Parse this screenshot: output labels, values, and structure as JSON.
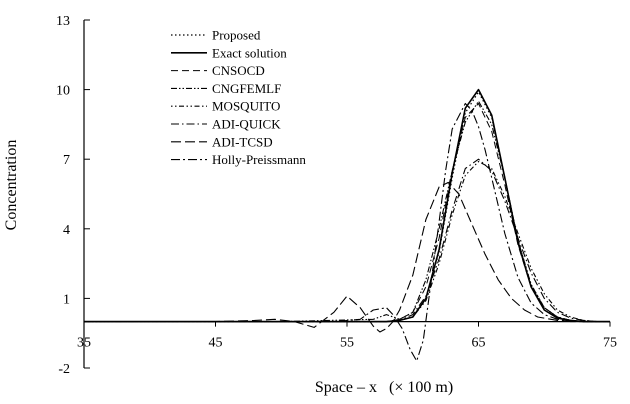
{
  "chart_data": {
    "type": "line",
    "title": "",
    "xlabel": "Space – x   (× 100 m)",
    "ylabel": "Concentration",
    "xlim": [
      35,
      75
    ],
    "ylim": [
      -2,
      13
    ],
    "xticks": [
      "35",
      "45",
      "55",
      "65",
      "75"
    ],
    "yticks": [
      "-2",
      "1",
      "4",
      "7",
      "10",
      "13"
    ],
    "grid": false,
    "legend_position": "top-left",
    "series": [
      {
        "name": "Proposed",
        "dash": "1.5 2.5",
        "width": 1.2,
        "x": [
          35,
          50,
          58,
          59,
          60,
          61,
          62,
          63,
          64,
          65,
          66,
          67,
          68,
          69,
          70,
          71,
          72,
          73,
          75
        ],
        "y": [
          0,
          0,
          0,
          0.05,
          0.2,
          1.0,
          3.0,
          6.2,
          9.0,
          9.9,
          8.8,
          6.2,
          3.5,
          1.6,
          0.6,
          0.2,
          0.05,
          0,
          0
        ]
      },
      {
        "name": "Exact solution",
        "dash": "",
        "width": 1.6,
        "x": [
          35,
          50,
          58,
          59,
          60,
          61,
          62,
          63,
          64,
          65,
          66,
          67,
          68,
          69,
          70,
          71,
          72,
          73,
          75
        ],
        "y": [
          0,
          0,
          0,
          0.05,
          0.2,
          1.0,
          3.1,
          6.4,
          9.2,
          10.0,
          8.9,
          6.2,
          3.4,
          1.5,
          0.5,
          0.15,
          0.05,
          0,
          0
        ]
      },
      {
        "name": "CNSOCD",
        "dash": "7 4",
        "width": 1.0,
        "x": [
          35,
          50,
          58,
          59,
          60,
          61,
          62,
          63,
          64,
          65,
          66,
          67,
          68,
          69,
          70,
          71,
          72,
          73,
          75
        ],
        "y": [
          0,
          0,
          0,
          0.1,
          0.4,
          1.5,
          3.6,
          6.5,
          8.8,
          9.4,
          8.2,
          5.9,
          3.3,
          1.5,
          0.6,
          0.2,
          0.05,
          0,
          0
        ]
      },
      {
        "name": "CNGFEMLF",
        "dash": "6 2 1.5 2 1.5 2",
        "width": 1.1,
        "x": [
          35,
          50,
          57,
          58,
          59,
          60,
          61,
          62,
          63,
          64,
          65,
          66,
          67,
          68,
          69,
          70,
          71,
          72,
          73,
          75
        ],
        "y": [
          0,
          0,
          0.1,
          0.3,
          0.1,
          0.4,
          1.8,
          4.0,
          6.5,
          8.6,
          9.5,
          8.5,
          6.2,
          3.5,
          1.6,
          0.6,
          0.2,
          0.05,
          0,
          0
        ]
      },
      {
        "name": "MOSQUITO",
        "dash": "1.5 2.5 1.5 2.5 5 2.5",
        "width": 1.1,
        "x": [
          35,
          50,
          58,
          59,
          60,
          61,
          62,
          63,
          64,
          65,
          66,
          67,
          68,
          69,
          70,
          71,
          72,
          73,
          74,
          75
        ],
        "y": [
          0,
          0,
          0,
          0.05,
          0.2,
          0.9,
          2.5,
          4.6,
          6.3,
          6.9,
          6.6,
          5.4,
          3.8,
          2.3,
          1.2,
          0.5,
          0.2,
          0.05,
          0,
          0
        ]
      },
      {
        "name": "ADI-QUICK",
        "dash": "8 3 1.5 3",
        "width": 1.1,
        "x": [
          35,
          50,
          58,
          59,
          60,
          61,
          62,
          63,
          64,
          65,
          66,
          67,
          68,
          69,
          70,
          71,
          72,
          73,
          74,
          75
        ],
        "y": [
          0,
          0,
          0,
          0.05,
          0.3,
          1.1,
          2.7,
          4.8,
          6.6,
          7.0,
          6.5,
          5.2,
          3.6,
          2.1,
          1.0,
          0.4,
          0.15,
          0.05,
          0,
          0
        ]
      },
      {
        "name": "ADI-TCSD",
        "dash": "10 4",
        "width": 1.1,
        "x": [
          35,
          45,
          48,
          49.5,
          51,
          52.5,
          54,
          55,
          56,
          57,
          57.5,
          58,
          58.5,
          59,
          60,
          61,
          62,
          62.7,
          63.5,
          64.5,
          65.5,
          66.5,
          67.5,
          68.5,
          69.5,
          71,
          73,
          75
        ],
        "y": [
          0,
          0,
          0.05,
          0.1,
          0.0,
          -0.25,
          0.4,
          1.1,
          0.6,
          -0.2,
          -0.45,
          -0.3,
          0.0,
          0.5,
          2.0,
          4.4,
          5.8,
          6.0,
          5.5,
          4.2,
          2.9,
          1.8,
          1.0,
          0.5,
          0.2,
          0.05,
          0,
          0
        ]
      },
      {
        "name": "Holly-Preissmann",
        "dash": "9 3 2 3",
        "width": 1.1,
        "x": [
          35,
          50,
          54,
          56,
          57,
          58,
          58.5,
          59.2,
          59.8,
          60.3,
          60.8,
          61.3,
          62,
          62.5,
          63,
          64,
          64.5,
          65,
          65.5,
          66,
          67,
          68,
          69,
          70,
          71,
          72,
          75
        ],
        "y": [
          0,
          0,
          0,
          0.1,
          0.5,
          0.6,
          0.3,
          -0.3,
          -1.2,
          -1.7,
          -0.8,
          1.3,
          4.3,
          6.5,
          8.3,
          9.4,
          9.1,
          8.4,
          7.4,
          6.2,
          3.8,
          1.9,
          0.8,
          0.3,
          0.1,
          0,
          0
        ]
      }
    ]
  }
}
